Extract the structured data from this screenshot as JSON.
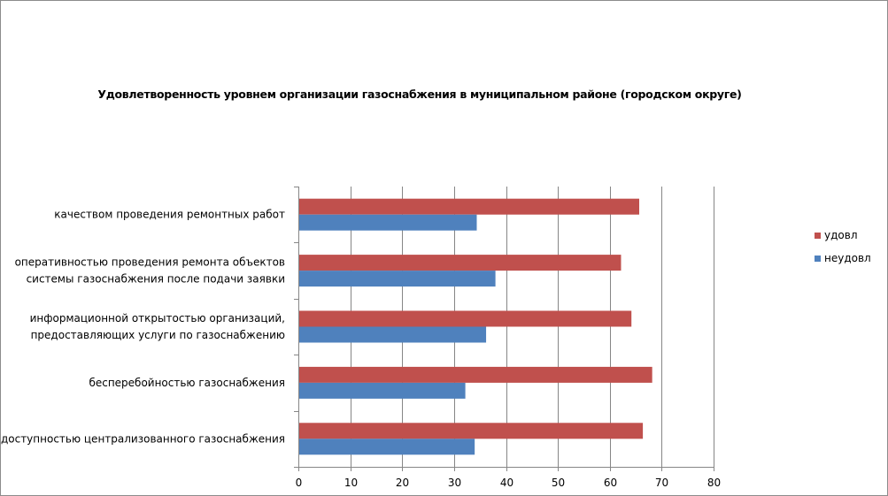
{
  "chart_data": {
    "type": "bar",
    "orientation": "horizontal",
    "title": "Удовлетворенность уровнем организации газоснабжения в муниципальном районе (городском округе)",
    "categories": [
      [
        "качеством проведения ремонтных работ"
      ],
      [
        "оперативностью проведения ремонта объектов",
        "системы газоснабжения после подачи заявки"
      ],
      [
        "информационной открытостью организаций,",
        "предоставляющих услуги по газоснабжению"
      ],
      [
        "бесперебойностью газоснабжения"
      ],
      [
        "доступностью централизованного газоснабжения"
      ]
    ],
    "series": [
      {
        "name": "удовл",
        "color": "#c0504d",
        "values": [
          65.5,
          62,
          64,
          68,
          66.2
        ]
      },
      {
        "name": "неудовл",
        "color": "#4f81bd",
        "values": [
          34.2,
          37.8,
          36,
          32,
          33.8
        ]
      }
    ],
    "xlim": [
      0,
      80
    ],
    "xticks": [
      "0",
      "10",
      "20",
      "30",
      "40",
      "50",
      "60",
      "70",
      "80"
    ],
    "grid": true,
    "legend_position": "right"
  }
}
